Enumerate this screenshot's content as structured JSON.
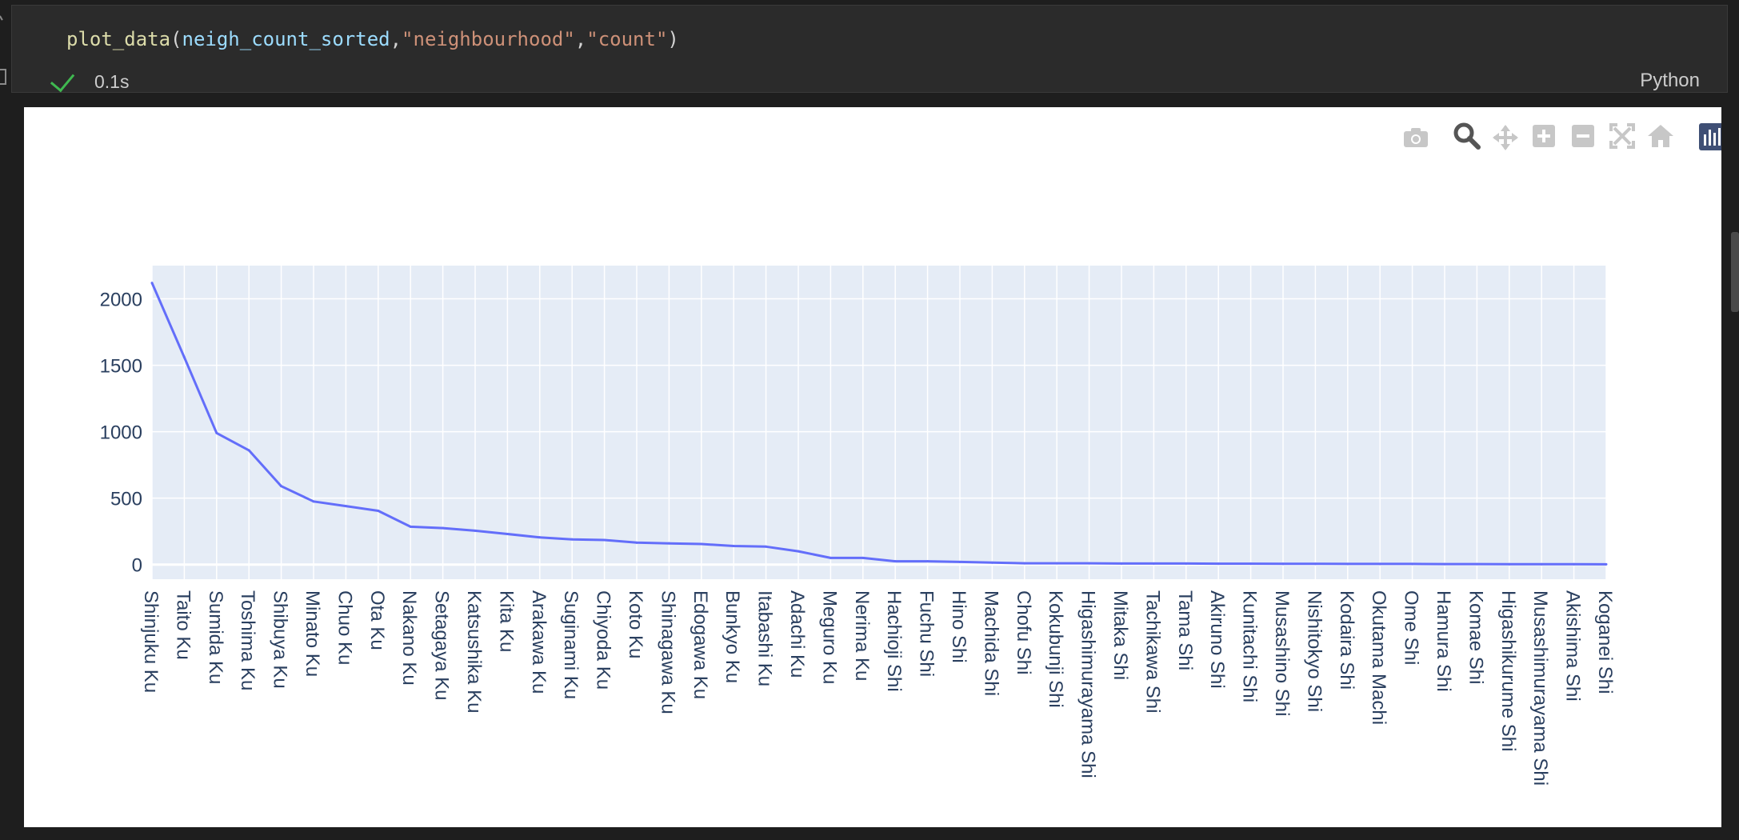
{
  "cell": {
    "code": {
      "fn": "plot_data",
      "arg_var": "neigh_count_sorted",
      "arg_str1": "\"neighbourhood\"",
      "arg_str2": "\"count\"",
      "open": "(",
      "comma": ",",
      "close": ")"
    },
    "exec_time": "0.1s",
    "language": "Python"
  },
  "modebar": {
    "icons": [
      "camera-icon",
      "zoom-icon",
      "pan-icon",
      "zoom-in-icon",
      "zoom-out-icon",
      "autoscale-icon",
      "reset-axes-icon",
      "plotly-logo-icon"
    ]
  },
  "chart_data": {
    "type": "line",
    "categories": [
      "Shinjuku Ku",
      "Taito Ku",
      "Sumida Ku",
      "Toshima Ku",
      "Shibuya Ku",
      "Minato Ku",
      "Chuo Ku",
      "Ota Ku",
      "Nakano Ku",
      "Setagaya Ku",
      "Katsushika Ku",
      "Kita Ku",
      "Arakawa Ku",
      "Suginami Ku",
      "Chiyoda Ku",
      "Koto Ku",
      "Shinagawa Ku",
      "Edogawa Ku",
      "Bunkyo Ku",
      "Itabashi Ku",
      "Adachi Ku",
      "Meguro Ku",
      "Nerima Ku",
      "Hachioji Shi",
      "Fuchu Shi",
      "Hino Shi",
      "Machida Shi",
      "Chofu Shi",
      "Kokubunji Shi",
      "Higashimurayama Shi",
      "Mitaka Shi",
      "Tachikawa Shi",
      "Tama Shi",
      "Akiruno Shi",
      "Kunitachi Shi",
      "Musashino Shi",
      "Nishitokyo Shi",
      "Kodaira Shi",
      "Okutama Machi",
      "Ome Shi",
      "Hamura Shi",
      "Komae Shi",
      "Higashikurume Shi",
      "Musashimurayama Shi",
      "Akishima Shi",
      "Koganei Shi"
    ],
    "series": [
      {
        "values": [
          2120,
          1560,
          990,
          860,
          590,
          475,
          440,
          405,
          285,
          275,
          255,
          230,
          205,
          190,
          185,
          165,
          160,
          155,
          140,
          135,
          100,
          50,
          50,
          25,
          25,
          20,
          15,
          10,
          10,
          10,
          8,
          8,
          8,
          7,
          7,
          6,
          6,
          5,
          5,
          5,
          4,
          4,
          3,
          3,
          3,
          2
        ],
        "color": "#636efa"
      }
    ],
    "yticks": [
      0,
      500,
      1000,
      1500,
      2000
    ],
    "ylim": [
      -110,
      2250
    ],
    "grid": true,
    "plot_bg": "#e5ecf6",
    "title": "",
    "xlabel": "",
    "ylabel": ""
  }
}
